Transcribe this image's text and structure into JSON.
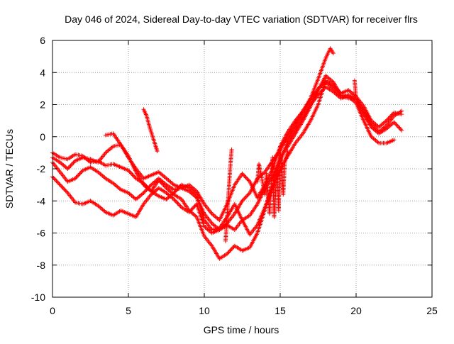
{
  "chart_data": {
    "type": "scatter",
    "title": "Day 046 of 2024, Sidereal Day-to-day VTEC variation (SDTVAR) for receiver flrs",
    "xlabel": "GPS time / hours",
    "ylabel": "SDTVAR / TECUs",
    "xlim": [
      0,
      25
    ],
    "ylim": [
      -10,
      6
    ],
    "xticks": [
      0,
      5,
      10,
      15,
      20,
      25
    ],
    "yticks": [
      -10,
      -8,
      -6,
      -4,
      -2,
      0,
      2,
      4,
      6
    ],
    "grid": true,
    "legend": "none",
    "marker": "+",
    "colors": {
      "series": "#ff0000",
      "grid": "#a0a0a0",
      "axes": "#000000",
      "background": "#ffffff"
    },
    "series": [
      {
        "points": [
          [
            0.0,
            -1.0
          ],
          [
            0.5,
            -1.3
          ],
          [
            1.0,
            -1.4
          ],
          [
            1.5,
            -1.1
          ],
          [
            2.0,
            -1.2
          ],
          [
            2.5,
            -1.6
          ],
          [
            3.0,
            -1.5
          ],
          [
            3.5,
            -1.8
          ],
          [
            4.0,
            -1.7
          ],
          [
            4.5,
            -1.9
          ],
          [
            5.0,
            -2.1
          ],
          [
            5.5,
            -2.6
          ],
          [
            6.0,
            -2.9
          ],
          [
            6.5,
            -3.4
          ],
          [
            7.0,
            -3.7
          ],
          [
            7.5,
            -3.9
          ],
          [
            8.0,
            -3.5
          ],
          [
            8.5,
            -3.0
          ],
          [
            9.0,
            -3.2
          ],
          [
            9.5,
            -3.6
          ],
          [
            10.0,
            -5.2
          ],
          [
            10.5,
            -5.8
          ],
          [
            11.0,
            -5.7
          ],
          [
            11.5,
            -5.0
          ],
          [
            12.0,
            -4.2
          ],
          [
            12.5,
            -5.2
          ],
          [
            13.0,
            -6.1
          ],
          [
            13.5,
            -5.5
          ],
          [
            14.0,
            -4.4
          ],
          [
            14.5,
            -3.0
          ],
          [
            15.0,
            -1.5
          ],
          [
            15.5,
            -0.3
          ],
          [
            16.0,
            0.5
          ],
          [
            16.5,
            1.3
          ],
          [
            17.0,
            2.0
          ],
          [
            17.5,
            2.6
          ],
          [
            18.0,
            3.1
          ],
          [
            18.5,
            2.8
          ],
          [
            19.0,
            2.4
          ],
          [
            19.5,
            2.6
          ],
          [
            20.0,
            2.3
          ],
          [
            20.5,
            1.6
          ],
          [
            21.0,
            0.8
          ],
          [
            21.5,
            0.3
          ],
          [
            22.0,
            0.7
          ],
          [
            22.5,
            1.3
          ],
          [
            23.0,
            1.6
          ]
        ]
      },
      {
        "points": [
          [
            0.0,
            -1.3
          ],
          [
            0.5,
            -1.6
          ],
          [
            1.0,
            -2.0
          ],
          [
            1.5,
            -1.5
          ],
          [
            2.0,
            -1.3
          ],
          [
            2.5,
            -1.4
          ],
          [
            3.0,
            -1.6
          ],
          [
            3.5,
            -1.0
          ],
          [
            4.0,
            -0.6
          ],
          [
            4.5,
            -0.5
          ],
          [
            5.0,
            -1.2
          ],
          [
            5.5,
            -2.2
          ],
          [
            6.0,
            -3.0
          ],
          [
            6.5,
            -3.4
          ],
          [
            7.0,
            -2.7
          ],
          [
            7.5,
            -3.2
          ],
          [
            8.0,
            -3.6
          ],
          [
            8.5,
            -3.9
          ],
          [
            9.0,
            -4.6
          ],
          [
            9.5,
            -5.0
          ],
          [
            10.0,
            -6.2
          ],
          [
            10.5,
            -6.8
          ],
          [
            11.0,
            -7.6
          ],
          [
            11.5,
            -7.3
          ],
          [
            12.0,
            -6.8
          ],
          [
            12.5,
            -7.1
          ],
          [
            13.0,
            -6.9
          ],
          [
            13.5,
            -6.0
          ],
          [
            14.0,
            -4.5
          ],
          [
            14.5,
            -3.2
          ],
          [
            15.0,
            -2.0
          ],
          [
            15.5,
            -1.2
          ],
          [
            16.0,
            -0.4
          ],
          [
            16.5,
            0.2
          ],
          [
            17.0,
            1.0
          ],
          [
            17.5,
            2.0
          ],
          [
            18.0,
            3.5
          ],
          [
            18.5,
            3.2
          ],
          [
            19.0,
            2.7
          ],
          [
            19.5,
            2.9
          ],
          [
            20.0,
            2.5
          ],
          [
            20.5,
            1.9
          ],
          [
            21.0,
            1.0
          ],
          [
            21.5,
            0.6
          ],
          [
            22.0,
            1.0
          ],
          [
            22.5,
            1.5
          ],
          [
            23.0,
            1.4
          ]
        ]
      },
      {
        "points": [
          [
            0.0,
            -2.5
          ],
          [
            0.5,
            -3.0
          ],
          [
            1.0,
            -3.5
          ],
          [
            1.5,
            -4.1
          ],
          [
            2.0,
            -4.2
          ],
          [
            2.5,
            -4.0
          ],
          [
            3.0,
            -4.3
          ],
          [
            3.5,
            -4.7
          ],
          [
            4.0,
            -4.9
          ],
          [
            4.5,
            -4.6
          ],
          [
            5.0,
            -4.8
          ],
          [
            5.5,
            -5.0
          ],
          [
            6.0,
            -4.2
          ],
          [
            6.5,
            -3.6
          ],
          [
            7.0,
            -3.2
          ],
          [
            7.5,
            -3.5
          ],
          [
            8.0,
            -3.9
          ],
          [
            8.5,
            -4.4
          ],
          [
            9.0,
            -4.7
          ],
          [
            9.5,
            -4.2
          ],
          [
            10.0,
            -5.6
          ],
          [
            10.5,
            -6.0
          ],
          [
            11.0,
            -5.8
          ],
          [
            11.5,
            -5.4
          ],
          [
            12.0,
            -4.8
          ],
          [
            12.5,
            -4.0
          ],
          [
            13.0,
            -3.5
          ],
          [
            13.5,
            -2.6
          ],
          [
            14.0,
            -2.2
          ],
          [
            14.5,
            -1.5
          ],
          [
            15.0,
            -0.8
          ],
          [
            15.5,
            0.0
          ],
          [
            16.0,
            0.8
          ],
          [
            16.5,
            1.6
          ],
          [
            17.0,
            2.4
          ],
          [
            17.5,
            3.6
          ],
          [
            18.0,
            4.9
          ],
          [
            18.3,
            5.5
          ],
          [
            18.5,
            5.2
          ]
        ]
      },
      {
        "points": [
          [
            0.0,
            -1.6
          ],
          [
            0.5,
            -2.2
          ],
          [
            1.0,
            -2.8
          ],
          [
            1.5,
            -2.6
          ],
          [
            2.0,
            -2.1
          ],
          [
            2.5,
            -1.9
          ],
          [
            3.0,
            -2.2
          ],
          [
            3.5,
            -2.6
          ],
          [
            4.0,
            -2.9
          ],
          [
            4.5,
            -3.3
          ],
          [
            5.0,
            -3.5
          ],
          [
            5.5,
            -3.9
          ],
          [
            6.0,
            -3.5
          ],
          [
            6.5,
            -3.0
          ],
          [
            7.0,
            -2.6
          ],
          [
            7.5,
            -3.0
          ],
          [
            8.0,
            -3.3
          ],
          [
            8.5,
            -3.2
          ],
          [
            9.0,
            -3.4
          ],
          [
            9.5,
            -3.8
          ],
          [
            10.0,
            -4.8
          ],
          [
            10.5,
            -5.4
          ],
          [
            11.0,
            -5.8
          ],
          [
            11.5,
            -5.5
          ],
          [
            12.0,
            -5.8
          ],
          [
            12.5,
            -5.2
          ],
          [
            13.0,
            -4.9
          ],
          [
            13.5,
            -4.2
          ],
          [
            14.0,
            -3.2
          ],
          [
            14.5,
            -2.5
          ],
          [
            15.0,
            -1.3
          ],
          [
            15.5,
            -0.6
          ],
          [
            16.0,
            0.2
          ],
          [
            16.5,
            1.0
          ],
          [
            17.0,
            1.9
          ],
          [
            17.5,
            2.9
          ],
          [
            18.0,
            3.8
          ],
          [
            18.5,
            3.4
          ],
          [
            19.0,
            2.6
          ],
          [
            19.5,
            2.5
          ],
          [
            20.0,
            2.1
          ],
          [
            20.5,
            1.0
          ],
          [
            21.0,
            0.0
          ],
          [
            21.5,
            -0.4
          ],
          [
            22.0,
            -0.4
          ],
          [
            22.5,
            -0.2
          ]
        ]
      },
      {
        "points": [
          [
            3.5,
            0.1
          ],
          [
            4.0,
            0.2
          ],
          [
            4.5,
            -0.5
          ],
          [
            5.0,
            -1.3
          ],
          [
            5.5,
            -2.0
          ],
          [
            6.0,
            -2.6
          ],
          [
            6.5,
            -2.4
          ],
          [
            7.0,
            -2.2
          ],
          [
            7.5,
            -2.6
          ],
          [
            8.0,
            -3.0
          ],
          [
            8.5,
            -3.2
          ],
          [
            9.0,
            -3.0
          ],
          [
            9.5,
            -3.4
          ],
          [
            10.0,
            -4.2
          ],
          [
            10.5,
            -4.8
          ],
          [
            11.0,
            -5.2
          ],
          [
            11.5,
            -4.2
          ],
          [
            12.0,
            -3.0
          ],
          [
            12.5,
            -2.3
          ],
          [
            13.0,
            -2.8
          ],
          [
            13.5,
            -3.8
          ],
          [
            14.0,
            -3.0
          ],
          [
            14.5,
            -2.0
          ],
          [
            15.0,
            -0.6
          ],
          [
            15.5,
            0.3
          ],
          [
            16.0,
            1.0
          ],
          [
            16.5,
            1.6
          ],
          [
            17.0,
            2.3
          ],
          [
            17.5,
            3.0
          ],
          [
            18.0,
            3.4
          ],
          [
            18.5,
            3.0
          ],
          [
            19.0,
            2.5
          ],
          [
            19.5,
            2.4
          ],
          [
            20.0,
            2.4
          ],
          [
            20.5,
            1.4
          ],
          [
            21.0,
            0.6
          ],
          [
            21.5,
            0.2
          ],
          [
            22.0,
            0.5
          ],
          [
            22.5,
            0.9
          ],
          [
            23.0,
            0.4
          ]
        ]
      },
      {
        "points": [
          [
            6.0,
            1.7
          ],
          [
            6.2,
            1.3
          ],
          [
            6.4,
            0.6
          ],
          [
            6.6,
            0.0
          ],
          [
            6.8,
            -0.6
          ],
          [
            6.9,
            -0.9
          ]
        ]
      },
      {
        "points": [
          [
            11.4,
            -6.5
          ],
          [
            11.5,
            -5.0
          ],
          [
            11.6,
            -3.5
          ],
          [
            11.7,
            -2.0
          ],
          [
            11.8,
            -0.8
          ],
          [
            13.5,
            -2.8
          ],
          [
            13.6,
            -1.7
          ],
          [
            14.0,
            -3.6
          ],
          [
            14.1,
            -2.3
          ],
          [
            14.3,
            -4.8
          ],
          [
            14.5,
            -1.3
          ],
          [
            14.6,
            -5.0
          ],
          [
            14.8,
            -2.0
          ],
          [
            14.9,
            -4.6
          ],
          [
            15.0,
            -0.6
          ],
          [
            15.2,
            -3.6
          ],
          [
            15.3,
            -1.6
          ],
          [
            15.5,
            -0.9
          ],
          [
            19.9,
            3.5
          ],
          [
            20.0,
            2.4
          ]
        ]
      }
    ]
  }
}
